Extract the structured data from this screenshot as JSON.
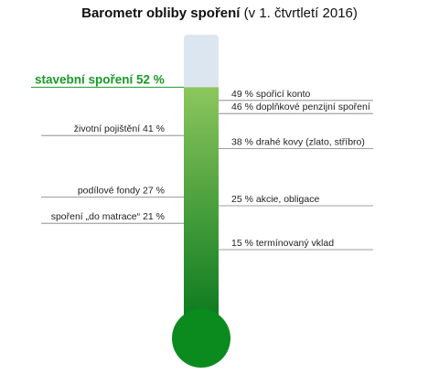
{
  "title": {
    "main": "Barometr obliby spoření",
    "sub": "(v 1. čtvrtletí 2016)"
  },
  "colors": {
    "tube_empty": "#dce6f1",
    "fill_top": "#8cc65d",
    "fill_bottom": "#0a7a1e",
    "bulb": "#0b8a1e",
    "highlight_text": "#1a9a28",
    "line": "#7f7f7f",
    "text": "#222222"
  },
  "chart_data": {
    "type": "bar",
    "title": "Barometr obliby spoření (v 1. čtvrtletí 2016)",
    "unit": "%",
    "ylim": [
      0,
      60
    ],
    "grid": false,
    "fill_level": {
      "label": "stavební spoření 52 %",
      "value": 52
    },
    "left_labels": [
      {
        "label": "stavební spoření 52 %",
        "value": 52,
        "highlight": true
      },
      {
        "label": "životní pojištění 41 %",
        "value": 41
      },
      {
        "label": "podílové fondy 27 %",
        "value": 27
      },
      {
        "label": "spoření „do matrace“ 21 %",
        "value": 21
      }
    ],
    "right_labels": [
      {
        "label": "49 % spořicí konto",
        "value": 49
      },
      {
        "label": "46 % doplňkové penzijní spoření",
        "value": 46
      },
      {
        "label": "38 % drahé kovy (zlato, stříbro)",
        "value": 38
      },
      {
        "label": "25 % akcie, obligace",
        "value": 25
      },
      {
        "label": "15 % termínovaný vklad",
        "value": 15
      }
    ]
  }
}
